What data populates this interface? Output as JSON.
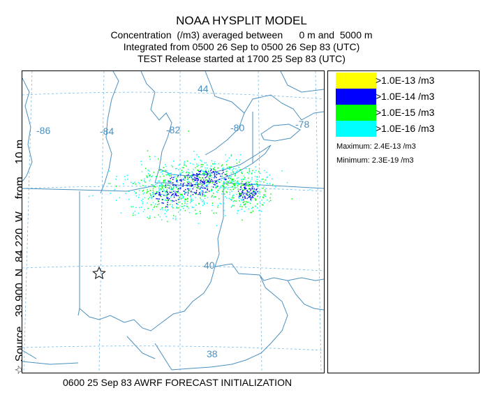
{
  "title": {
    "line1": "NOAA HYSPLIT MODEL",
    "line2": "Concentration  (/m3) averaged between      0 m and  5000 m",
    "line3": "Integrated from 0500 26 Sep to 0500 26 Sep 83 (UTC)",
    "line4": "TEST Release started at 1700 25 Sep 83 (UTC)"
  },
  "side_label": {
    "star": "☆",
    "text": "Source   39.900  N  84.220  W    from    10 m"
  },
  "source": {
    "lat": 39.9,
    "lon": -84.22
  },
  "map": {
    "longitude_labels": [
      "-86",
      "-84",
      "-82",
      "-80",
      "-78"
    ],
    "latitude_labels": [
      "44",
      "40",
      "38"
    ],
    "line_color": "#4a90c0",
    "grid_color": "#7fb8dc"
  },
  "legend": {
    "levels": [
      {
        "label": ">1.0E-13 /m3",
        "color": "#ffff00"
      },
      {
        "label": ">1.0E-14 /m3",
        "color": "#0000ff"
      },
      {
        "label": ">1.0E-15 /m3",
        "color": "#00ff00"
      },
      {
        "label": ">1.0E-16 /m3",
        "color": "#00ffff"
      }
    ],
    "maximum": "Maximum: 2.4E-13 /m3",
    "minimum": "Minimum: 2.3E-19 /m3"
  },
  "footer": "0600 25 Sep 83 AWRF FORECAST INITIALIZATION"
}
